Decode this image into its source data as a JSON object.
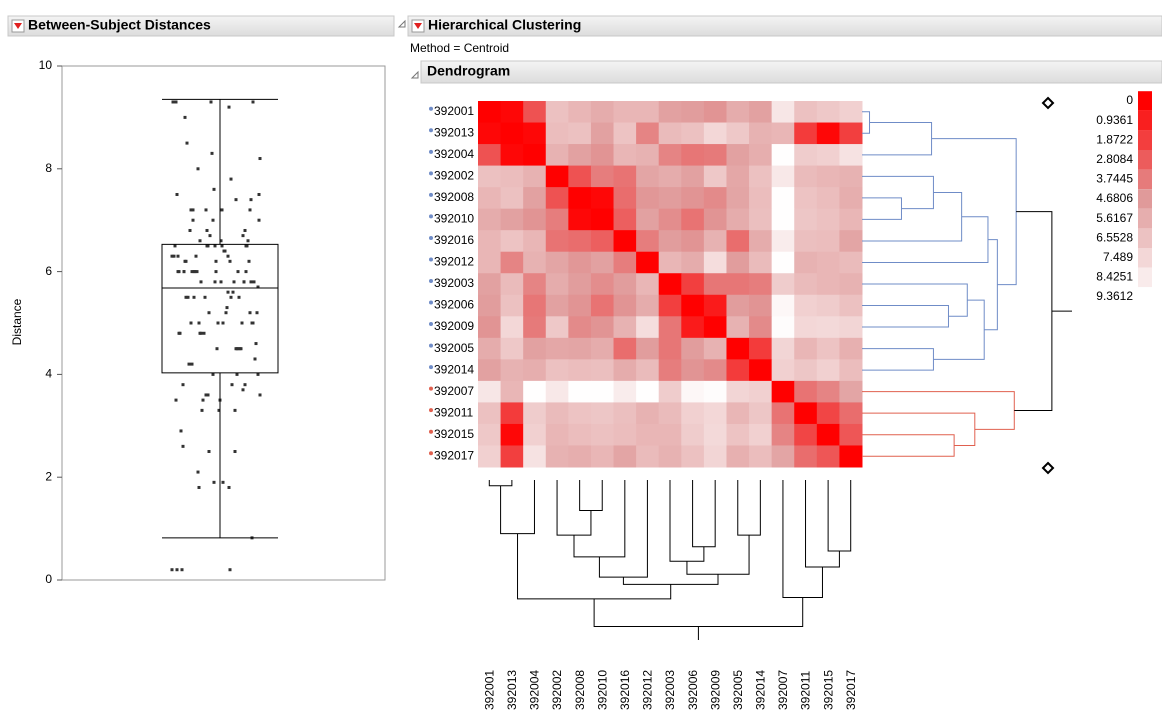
{
  "panels": {
    "left": {
      "title": "Between-Subject Distances"
    },
    "right": {
      "title": "Hierarchical Clustering",
      "method": "Method = Centroid",
      "section": "Dendrogram"
    }
  },
  "chart_data": [
    {
      "type": "box",
      "ylabel": "Distance",
      "ylim": [
        0,
        10
      ],
      "yticks": [
        0,
        2,
        4,
        6,
        8,
        10
      ],
      "whisker_low": 0.82,
      "q1": 4.03,
      "median": 5.68,
      "q3": 6.53,
      "whisker_high": 9.35,
      "color": "#333333"
    },
    {
      "type": "heatmap",
      "labels": [
        "392001",
        "392013",
        "392004",
        "392002",
        "392008",
        "392010",
        "392016",
        "392012",
        "392003",
        "392006",
        "392009",
        "392005",
        "392014",
        "392007",
        "392011",
        "392015",
        "392017"
      ],
      "label_colors": [
        "#6f8cc7",
        "#6f8cc7",
        "#6f8cc7",
        "#6f8cc7",
        "#6f8cc7",
        "#6f8cc7",
        "#6f8cc7",
        "#6f8cc7",
        "#6f8cc7",
        "#6f8cc7",
        "#6f8cc7",
        "#6f8cc7",
        "#6f8cc7",
        "#e0604f",
        "#e0604f",
        "#e0604f",
        "#e0604f"
      ],
      "matrix": [
        [
          0,
          0.2,
          2.5,
          6.5,
          6.0,
          5.5,
          6.0,
          6.0,
          5.0,
          4.8,
          4.5,
          5.5,
          5.0,
          8.2,
          6.5,
          6.8,
          7.2
        ],
        [
          0.2,
          0,
          0.2,
          6.3,
          6.5,
          5.0,
          6.6,
          4.0,
          6.2,
          6.5,
          7.5,
          6.8,
          5.8,
          6.0,
          1.8,
          0.2,
          1.9
        ],
        [
          2.5,
          0.2,
          0,
          5.8,
          5.0,
          4.5,
          6.0,
          5.8,
          4.0,
          3.6,
          3.7,
          5.0,
          5.6,
          9.3,
          7.0,
          7.2,
          8.0
        ],
        [
          6.5,
          6.3,
          5.8,
          0,
          2.5,
          3.8,
          3.5,
          5.2,
          5.5,
          5.0,
          6.8,
          5.3,
          6.5,
          8.3,
          6.2,
          6.0,
          5.8
        ],
        [
          6.0,
          6.5,
          5.0,
          2.5,
          0,
          0.2,
          3.3,
          4.6,
          4.8,
          4.5,
          4.2,
          5.2,
          6.3,
          9.3,
          6.6,
          6.3,
          5.6
        ],
        [
          5.5,
          5.0,
          4.5,
          3.8,
          0.2,
          0,
          2.9,
          5.0,
          4.3,
          3.5,
          4.5,
          5.5,
          6.4,
          9.3,
          6.7,
          6.5,
          6.0
        ],
        [
          6.0,
          6.6,
          6.0,
          3.5,
          3.3,
          2.9,
          0,
          3.8,
          4.8,
          4.5,
          5.8,
          3.3,
          5.5,
          8.5,
          6.4,
          6.3,
          5.2
        ],
        [
          6.0,
          4.0,
          5.8,
          5.2,
          4.6,
          5.0,
          3.8,
          0,
          6.0,
          5.5,
          7.8,
          4.8,
          6.2,
          9.3,
          5.8,
          6.0,
          6.2
        ],
        [
          5.0,
          6.2,
          4.0,
          5.5,
          4.8,
          4.3,
          4.8,
          6.0,
          0,
          1.9,
          3.6,
          3.6,
          3.8,
          7.0,
          6.2,
          6.0,
          5.8
        ],
        [
          4.8,
          6.5,
          3.6,
          5.0,
          4.5,
          3.5,
          4.5,
          5.5,
          1.9,
          0,
          0.82,
          4.8,
          4.5,
          9.0,
          7.2,
          7.0,
          6.5
        ],
        [
          4.5,
          7.5,
          3.7,
          6.8,
          4.2,
          4.5,
          5.8,
          7.8,
          3.6,
          0.82,
          0,
          5.8,
          4.2,
          9.2,
          7.5,
          7.6,
          7.4
        ],
        [
          5.5,
          6.8,
          5.0,
          5.3,
          5.2,
          5.5,
          3.3,
          4.8,
          3.6,
          4.8,
          5.8,
          0,
          1.8,
          7.4,
          6.0,
          6.6,
          5.7
        ],
        [
          5.0,
          5.8,
          5.6,
          6.5,
          6.3,
          6.4,
          5.5,
          6.2,
          3.8,
          4.5,
          4.2,
          1.8,
          0,
          7.2,
          6.7,
          7.2,
          6.3
        ],
        [
          8.2,
          6.0,
          9.3,
          8.3,
          9.3,
          9.3,
          8.5,
          9.3,
          7.0,
          9.0,
          9.2,
          7.4,
          7.2,
          0,
          3.5,
          4.0,
          5.2
        ],
        [
          6.5,
          1.8,
          7.0,
          6.2,
          6.6,
          6.7,
          6.4,
          5.8,
          6.2,
          7.2,
          7.5,
          6.0,
          6.7,
          3.5,
          0,
          2.1,
          3.3
        ],
        [
          6.8,
          0.2,
          7.2,
          6.0,
          6.3,
          6.5,
          6.3,
          6.0,
          6.0,
          7.0,
          7.6,
          6.6,
          7.2,
          4.0,
          2.1,
          0,
          2.6
        ],
        [
          7.2,
          1.9,
          8.0,
          5.8,
          5.6,
          6.0,
          5.2,
          6.2,
          5.8,
          6.5,
          7.4,
          5.7,
          6.3,
          5.2,
          3.3,
          2.6,
          0
        ]
      ],
      "colorbar": {
        "values": [
          0,
          0.9361,
          1.8722,
          2.8084,
          3.7445,
          4.6806,
          5.6167,
          6.5528,
          7.489,
          8.4251,
          9.3612
        ],
        "colors": [
          "#ff0000",
          "#e09a9a",
          "#ffffff"
        ]
      },
      "merges": [
        [
          0,
          1,
          0.4
        ],
        [
          17,
          2,
          3.7
        ],
        [
          4,
          5,
          2.1
        ],
        [
          3,
          19,
          3.8
        ],
        [
          20,
          6,
          5.3
        ],
        [
          9,
          10,
          4.6
        ],
        [
          8,
          22,
          5.6
        ],
        [
          11,
          12,
          3.8
        ],
        [
          23,
          24,
          6.5
        ],
        [
          21,
          7,
          6.7
        ],
        [
          26,
          25,
          7.2
        ],
        [
          18,
          27,
          8.2
        ],
        [
          15,
          16,
          4.9
        ],
        [
          14,
          29,
          6.0
        ],
        [
          13,
          30,
          8.1
        ],
        [
          28,
          31,
          10.1
        ]
      ],
      "column_tree_color": "#000000"
    }
  ]
}
